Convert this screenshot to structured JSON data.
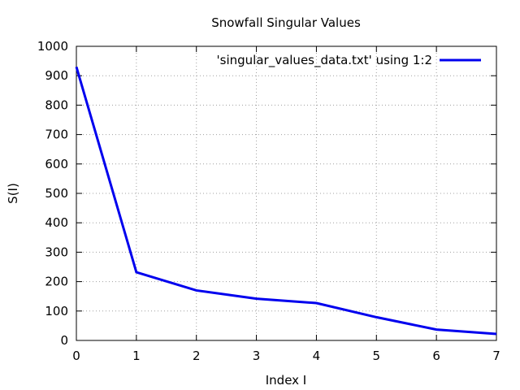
{
  "chart_data": {
    "type": "line",
    "title": "Snowfall Singular Values",
    "xlabel": "Index I",
    "ylabel": "S(I)",
    "xlim": [
      0,
      7
    ],
    "ylim": [
      0,
      1000
    ],
    "x_ticks": [
      0,
      1,
      2,
      3,
      4,
      5,
      6,
      7
    ],
    "y_ticks": [
      0,
      100,
      200,
      300,
      400,
      500,
      600,
      700,
      800,
      900,
      1000
    ],
    "grid": true,
    "legend_position": "top-right",
    "series": [
      {
        "name": "'singular_values_data.txt' using 1:2",
        "color": "#0000ee",
        "x": [
          0,
          1,
          2,
          3,
          4,
          5,
          6,
          7
        ],
        "y": [
          930,
          232,
          170,
          142,
          127,
          79,
          37,
          22
        ]
      }
    ]
  }
}
